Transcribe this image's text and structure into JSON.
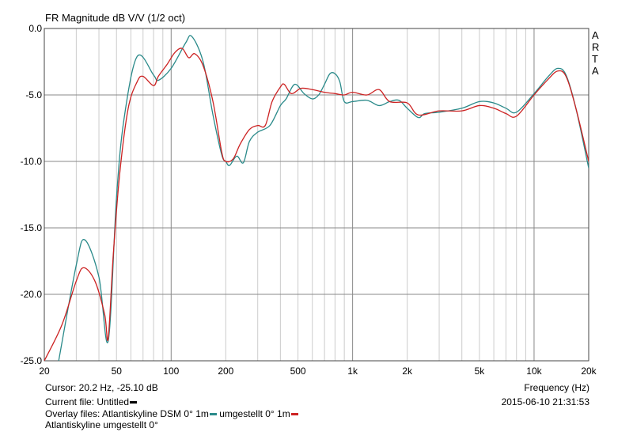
{
  "chart_data": {
    "type": "line",
    "title": "FR Magnitude dB V/V (1/2 oct)",
    "xlabel": "Frequency (Hz)",
    "ylabel": "",
    "xscale": "log",
    "xlim": [
      20,
      20000
    ],
    "ylim": [
      -25,
      0
    ],
    "grid": true,
    "xticks": [
      {
        "v": 20,
        "label": "20"
      },
      {
        "v": 50,
        "label": "50"
      },
      {
        "v": 100,
        "label": "100"
      },
      {
        "v": 200,
        "label": "200"
      },
      {
        "v": 500,
        "label": "500"
      },
      {
        "v": 1000,
        "label": "1k"
      },
      {
        "v": 2000,
        "label": "2k"
      },
      {
        "v": 5000,
        "label": "5k"
      },
      {
        "v": 10000,
        "label": "10k"
      },
      {
        "v": 20000,
        "label": "20k"
      }
    ],
    "yticks": [
      {
        "v": 0,
        "label": "0.0"
      },
      {
        "v": -5,
        "label": "-5.0"
      },
      {
        "v": -10,
        "label": "-10.0"
      },
      {
        "v": -15,
        "label": "-15.0"
      },
      {
        "v": -20,
        "label": "-20.0"
      },
      {
        "v": -25,
        "label": "-25.0"
      }
    ],
    "series": [
      {
        "name": "Atlantiskyline DSM 0° 1m",
        "color": "#2a8a8a",
        "x": [
          24,
          30,
          33.4,
          40,
          45,
          50,
          55,
          65,
          80,
          85,
          100,
          120,
          130,
          150,
          170,
          190,
          200,
          210,
          230,
          250,
          270,
          300,
          350,
          400,
          430,
          480,
          540,
          600,
          650,
          700,
          750,
          800,
          850,
          900,
          1000,
          1200,
          1400,
          1600,
          1800,
          2000,
          2300,
          2500,
          3000,
          4000,
          5000,
          6000,
          7000,
          8000,
          10000,
          12000,
          13500,
          15000,
          17000,
          20000
        ],
        "y": [
          -25,
          -17.8,
          -15.9,
          -18.7,
          -23.5,
          -12.7,
          -6.8,
          -2.1,
          -3.5,
          -3.9,
          -3.0,
          -1.1,
          -0.6,
          -2.5,
          -6.5,
          -9.5,
          -10.0,
          -10.3,
          -9.6,
          -10.1,
          -8.5,
          -7.8,
          -7.3,
          -5.8,
          -5.3,
          -4.2,
          -4.9,
          -5.3,
          -5.0,
          -4.2,
          -3.4,
          -3.4,
          -4.0,
          -5.5,
          -5.5,
          -5.4,
          -5.8,
          -5.5,
          -5.4,
          -6.0,
          -6.7,
          -6.4,
          -6.3,
          -6.0,
          -5.5,
          -5.6,
          -6.0,
          -6.3,
          -4.9,
          -3.6,
          -3.0,
          -3.5,
          -6.0,
          -10.5
        ]
      },
      {
        "name": "umgestellt 0° 1m",
        "color": "#cc2222",
        "x": [
          20,
          25,
          30,
          33,
          38,
          43,
          45,
          48,
          52,
          58,
          65,
          70,
          80,
          85,
          95,
          105,
          115,
          125,
          135,
          150,
          170,
          190,
          200,
          220,
          240,
          270,
          300,
          330,
          360,
          400,
          420,
          460,
          520,
          600,
          700,
          800,
          900,
          1000,
          1200,
          1400,
          1600,
          2000,
          2300,
          3000,
          4000,
          5000,
          6000,
          7000,
          8000,
          10000,
          12000,
          13500,
          15000,
          17000,
          20000
        ],
        "y": [
          -25,
          -22.3,
          -19,
          -18,
          -19,
          -21.5,
          -23.3,
          -17,
          -11,
          -6,
          -4.0,
          -3.6,
          -4.3,
          -3.6,
          -2.7,
          -1.8,
          -1.5,
          -2.2,
          -1.9,
          -2.8,
          -5.5,
          -9.3,
          -10.0,
          -9.8,
          -8.7,
          -7.6,
          -7.3,
          -7.3,
          -5.5,
          -4.4,
          -4.2,
          -4.9,
          -4.5,
          -4.6,
          -4.8,
          -4.9,
          -5.0,
          -4.8,
          -5.0,
          -4.6,
          -5.5,
          -5.6,
          -6.5,
          -6.2,
          -6.2,
          -5.8,
          -6.0,
          -6.4,
          -6.6,
          -5.0,
          -3.8,
          -3.2,
          -3.6,
          -6.0,
          -10.0
        ]
      }
    ]
  },
  "side_label": [
    "A",
    "R",
    "T",
    "A"
  ],
  "footer": {
    "cursor": "Cursor: 20.2 Hz, -25.10 dB",
    "current_file": "Current file: Untitled",
    "overlay_prefix": "Overlay files: Atlantiskyline DSM 0° 1m",
    "overlay_second": " umgestellt 0° 1m",
    "overlay_line2": "Atlantiskyline umgestellt 0°",
    "frequency_label": "Frequency (Hz)",
    "timestamp": "2015-06-10  21:31:53",
    "current_color": "#000000"
  }
}
